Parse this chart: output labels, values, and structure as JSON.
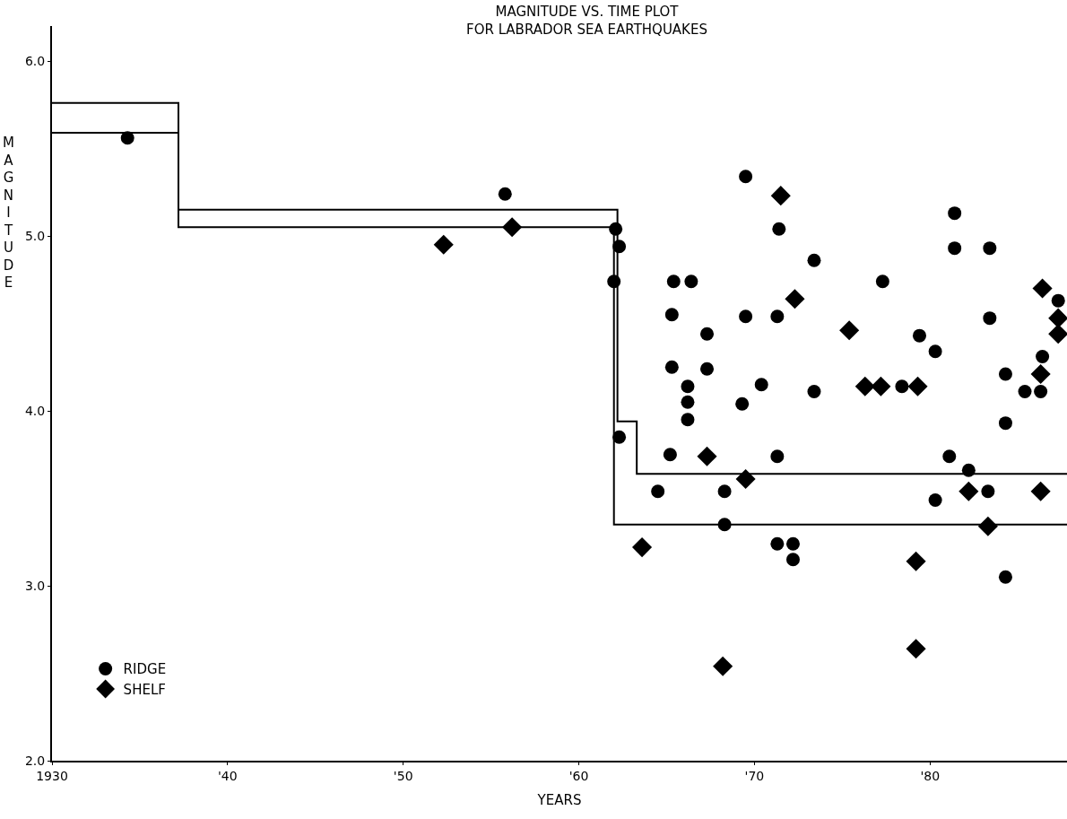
{
  "chart_data": {
    "type": "scatter",
    "title": "MAGNITUDE VS. TIME PLOT\nFOR LABRADOR SEA EARTHQUAKES",
    "xlabel": "YEARS",
    "ylabel": "MAGNITUDE",
    "xlim": [
      1930,
      1987.8
    ],
    "ylim": [
      2.0,
      6.2
    ],
    "xticks": [
      {
        "value": 1930,
        "label": "1930"
      },
      {
        "value": 1940,
        "label": "'40"
      },
      {
        "value": 1950,
        "label": "'50"
      },
      {
        "value": 1960,
        "label": "'60"
      },
      {
        "value": 1970,
        "label": "'70"
      },
      {
        "value": 1980,
        "label": "'80"
      }
    ],
    "yticks": [
      {
        "value": 2,
        "label": "2.0"
      },
      {
        "value": 3,
        "label": "3.0"
      },
      {
        "value": 4,
        "label": "4.0"
      },
      {
        "value": 5,
        "label": "5.0"
      },
      {
        "value": 6,
        "label": "6.0"
      }
    ],
    "legend": "bottom left",
    "series": [
      {
        "type": "step",
        "color": "#000000",
        "marker": "none",
        "x": [
          1930,
          1937.2,
          1962.2,
          1963.3,
          1987.8
        ],
        "values": [
          5.76,
          5.15,
          3.94,
          3.64,
          3.64
        ]
      },
      {
        "type": "step",
        "color": "#000000",
        "marker": "none",
        "x": [
          1930,
          1937.2,
          1962.0,
          1987.8
        ],
        "values": [
          5.59,
          5.05,
          3.35,
          3.35
        ]
      },
      {
        "type": "scatter",
        "name": "RIDGE",
        "color": "#000000",
        "marker": "circle",
        "x": [
          1934.3,
          1955.8,
          1962.1,
          1962.3,
          1962.0,
          1962.3,
          1964.5,
          1965.4,
          1965.3,
          1965.3,
          1965.2,
          1966.4,
          1966.2,
          1966.2,
          1966.2,
          1967.3,
          1967.3,
          1968.3,
          1968.3,
          1969.5,
          1969.5,
          1969.3,
          1970.4,
          1971.4,
          1971.3,
          1971.3,
          1971.3,
          1972.2,
          1972.2,
          1973.4,
          1973.4,
          1977.3,
          1978.4,
          1979.4,
          1980.3,
          1980.3,
          1981.4,
          1981.4,
          1981.1,
          1982.2,
          1983.4,
          1983.4,
          1983.3,
          1984.3,
          1984.3,
          1984.3,
          1985.4,
          1986.4,
          1986.3,
          1987.3
        ],
        "values": [
          5.56,
          5.24,
          5.04,
          4.94,
          4.74,
          3.85,
          3.54,
          4.74,
          4.55,
          4.25,
          3.75,
          4.74,
          4.14,
          4.05,
          3.95,
          4.44,
          4.24,
          3.54,
          3.35,
          5.34,
          4.54,
          4.04,
          4.15,
          5.04,
          4.54,
          3.74,
          3.24,
          3.24,
          3.15,
          4.86,
          4.11,
          4.74,
          4.14,
          4.43,
          4.34,
          3.49,
          5.13,
          4.93,
          3.74,
          3.66,
          4.93,
          4.53,
          3.54,
          4.21,
          3.93,
          3.05,
          4.11,
          4.31,
          4.11,
          4.63
        ]
      },
      {
        "type": "scatter",
        "name": "SHELF",
        "color": "#000000",
        "marker": "diamond",
        "x": [
          1952.3,
          1956.2,
          1963.6,
          1967.3,
          1968.2,
          1969.5,
          1971.5,
          1972.3,
          1975.4,
          1976.3,
          1977.2,
          1979.3,
          1979.2,
          1979.2,
          1982.2,
          1983.3,
          1986.4,
          1986.3,
          1986.3,
          1987.3,
          1987.3
        ],
        "values": [
          4.95,
          5.05,
          3.22,
          3.74,
          2.54,
          3.61,
          5.23,
          4.64,
          4.46,
          4.14,
          4.14,
          4.14,
          3.14,
          2.64,
          3.54,
          3.34,
          4.7,
          4.21,
          3.54,
          4.53,
          4.44
        ]
      }
    ]
  }
}
